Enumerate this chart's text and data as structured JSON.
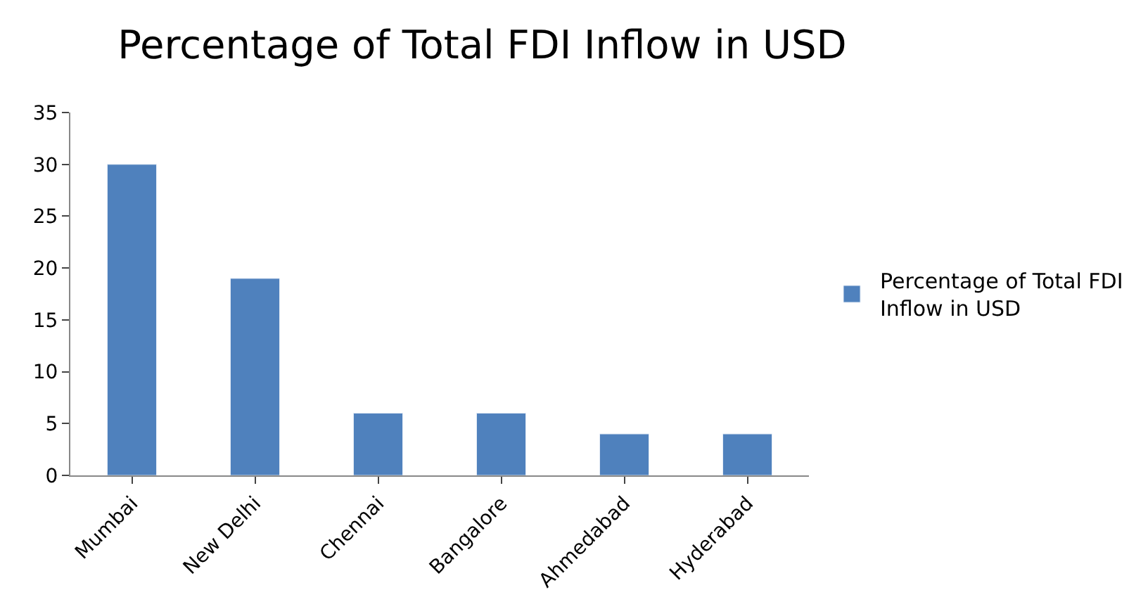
{
  "chart_data": {
    "type": "bar",
    "title": "Percentage of Total FDI Inflow in USD",
    "categories": [
      "Mumbai",
      "New Delhi",
      "Chennai",
      "Bangalore",
      "Ahmedabad",
      "Hyderabad"
    ],
    "series": [
      {
        "name": "Percentage of Total FDI Inflow in USD",
        "color": "#4f81bd",
        "values": [
          30,
          19,
          6,
          6,
          4,
          4
        ]
      }
    ],
    "ylim": [
      0,
      35
    ],
    "yticks": [
      0,
      5,
      10,
      15,
      20,
      25,
      30,
      35
    ],
    "legend": "right"
  }
}
